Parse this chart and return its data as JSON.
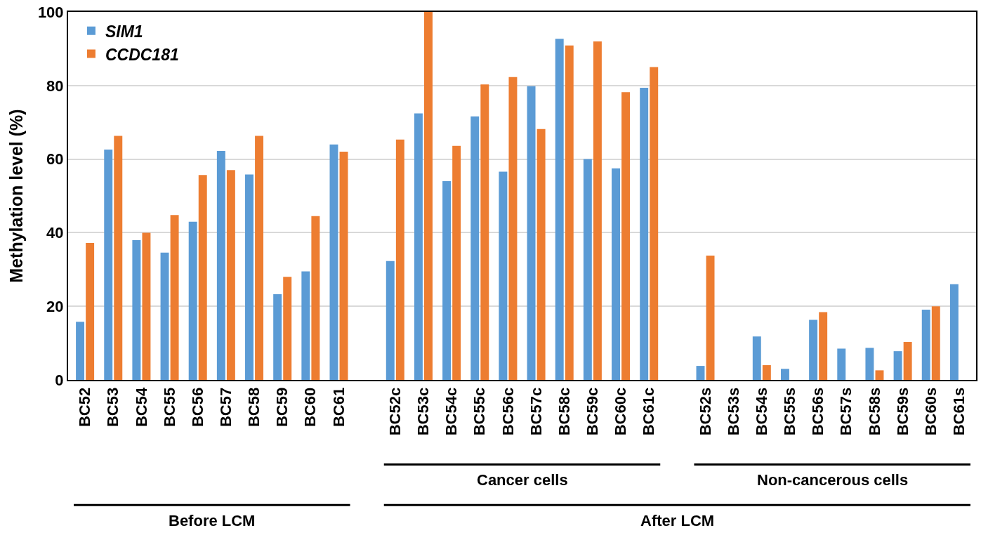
{
  "chart_data": {
    "type": "bar",
    "ylabel": "Methylation level (%)",
    "categories": [
      "BC52",
      "BC53",
      "BC54",
      "BC55",
      "BC56",
      "BC57",
      "BC58",
      "BC59",
      "BC60",
      "BC61",
      null,
      "BC52c",
      "BC53c",
      "BC54c",
      "BC55c",
      "BC56c",
      "BC57c",
      "BC58c",
      "BC59c",
      "BC60c",
      "BC61c",
      null,
      "BC52s",
      "BC53s",
      "BC54s",
      "BC55s",
      "BC56s",
      "BC57s",
      "BC58s",
      "BC59s",
      "BC60s",
      "BC61s"
    ],
    "series": [
      {
        "name": "SIM1",
        "color": "#5b9bd5",
        "values": [
          15.8,
          62.6,
          38,
          34.6,
          43,
          62.2,
          55.8,
          23.3,
          29.5,
          64,
          null,
          32.3,
          72.4,
          54,
          71.6,
          56.6,
          79.8,
          92.7,
          60,
          57.5,
          79.4,
          null,
          3.8,
          0,
          11.8,
          3,
          16.3,
          8.5,
          8.7,
          7.8,
          19.1,
          26
        ]
      },
      {
        "name": "CCDC181",
        "color": "#ed7d31",
        "values": [
          37.2,
          66.3,
          40,
          44.8,
          55.7,
          57,
          66.3,
          28,
          44.5,
          62,
          null,
          65.3,
          100,
          63.6,
          80.3,
          82.3,
          68.2,
          90.9,
          92,
          78.2,
          85,
          null,
          33.8,
          0,
          4,
          0,
          18.4,
          0,
          2.6,
          10.3,
          20,
          0
        ]
      }
    ],
    "annotations": [
      "Cancer cells",
      "Non-cancerous cells",
      "Before LCM",
      "After LCM"
    ],
    "ylim": [
      0,
      100
    ],
    "yticks": [
      0,
      20,
      40,
      60,
      80,
      100
    ],
    "grid": "y",
    "legend": "top left"
  }
}
